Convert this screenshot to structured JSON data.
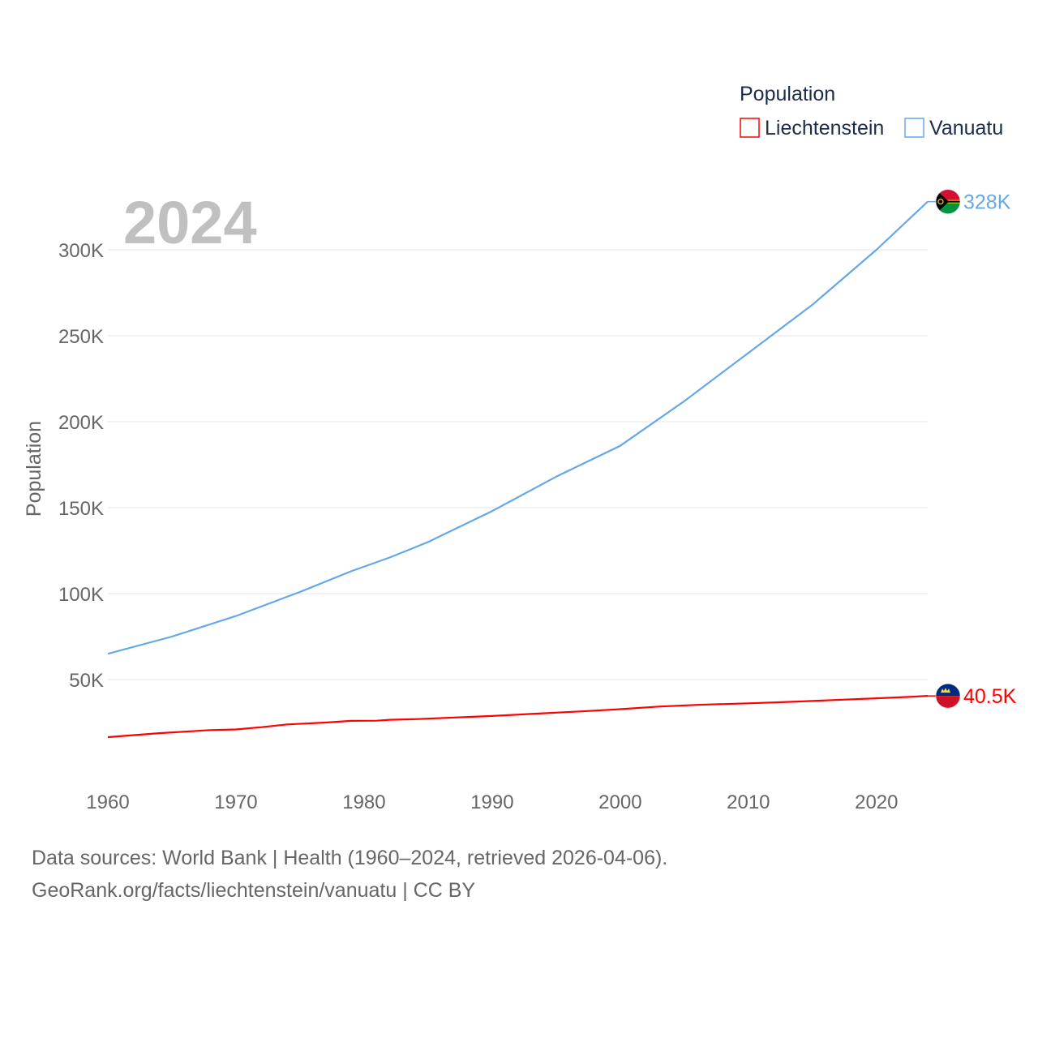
{
  "chart_data": {
    "type": "line",
    "title": "",
    "year_label": "2024",
    "xlabel": "",
    "ylabel": "Population",
    "xlim": [
      1960,
      2024
    ],
    "ylim": [
      0,
      330000
    ],
    "x_ticks": [
      1960,
      1970,
      1980,
      1990,
      2000,
      2010,
      2020
    ],
    "x_tick_labels": [
      "1960",
      "1970",
      "1980",
      "1990",
      "2000",
      "2010",
      "2020"
    ],
    "y_ticks": [
      50000,
      100000,
      150000,
      200000,
      250000,
      300000
    ],
    "y_tick_labels": [
      "50K",
      "100K",
      "150K",
      "200K",
      "250K",
      "300K"
    ],
    "legend": {
      "title": "Population",
      "position": "top-right"
    },
    "series": [
      {
        "name": "Liechtenstein",
        "color": "#ff0000",
        "end_label": "40.5K",
        "flag": "liechtenstein-flag-icon",
        "x": [
          1960,
          1964,
          1968,
          1970,
          1972,
          1974,
          1977,
          1979,
          1981,
          1982,
          1984,
          1990,
          1993,
          1997,
          2000,
          2003,
          2006,
          2010,
          2013,
          2016,
          2020,
          2023,
          2024
        ],
        "y": [
          16500,
          18800,
          20600,
          21000,
          22300,
          23900,
          25000,
          26000,
          26100,
          26600,
          27000,
          28800,
          30000,
          31500,
          32800,
          34300,
          35300,
          36200,
          37000,
          37900,
          39100,
          40100,
          40500
        ]
      },
      {
        "name": "Vanuatu",
        "color": "#64a8e8",
        "end_label": "328K",
        "flag": "vanuatu-flag-icon",
        "x": [
          1960,
          1965,
          1970,
          1975,
          1979,
          1982,
          1985,
          1990,
          1995,
          2000,
          2005,
          2010,
          2015,
          2020,
          2024
        ],
        "y": [
          65000,
          75000,
          87000,
          101000,
          113000,
          121000,
          130000,
          148000,
          168000,
          186000,
          212000,
          240000,
          268000,
          300000,
          328000
        ]
      }
    ]
  },
  "footer": {
    "line1": "Data sources: World Bank | Health (1960–2024, retrieved 2026-04-06).",
    "line2": "GeoRank.org/facts/liechtenstein/vanuatu | CC BY"
  }
}
